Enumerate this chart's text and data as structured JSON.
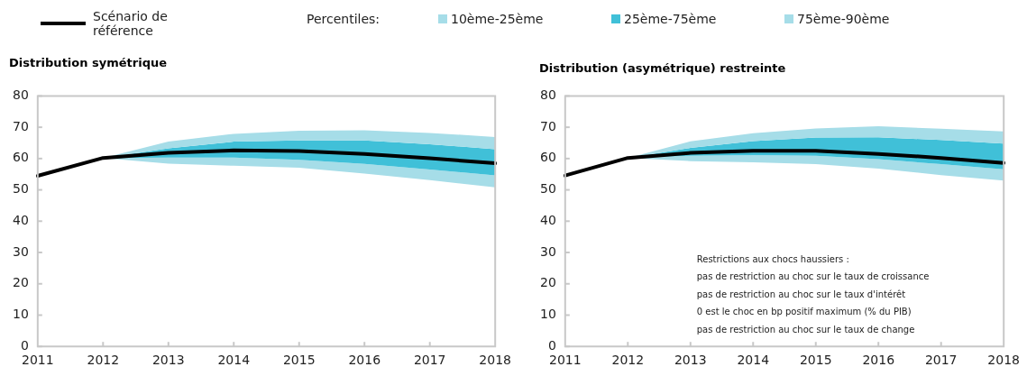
{
  "chart_data": [
    {
      "type": "line",
      "title": "Distribution symétrique",
      "legend_title": "Percentiles:",
      "legend": "top",
      "categories": [
        "2011",
        "2012",
        "2013",
        "2014",
        "2015",
        "2016",
        "2017",
        "2018"
      ],
      "ylim": [
        0,
        80
      ],
      "yticks": [
        0,
        10,
        20,
        30,
        40,
        50,
        60,
        70,
        80
      ],
      "grid": false,
      "marker": "none",
      "line_style": "solid",
      "series": [
        {
          "name": "Scénario de référence",
          "type": "line",
          "color": "#000000",
          "values": [
            54.5,
            60.2,
            61.8,
            62.6,
            62.4,
            61.5,
            60.1,
            58.5
          ]
        },
        {
          "name": "10ème-25ème",
          "type": "area",
          "color": "#a6dde8",
          "values": [
            null,
            null,
            null,
            null,
            null,
            null,
            null,
            null
          ],
          "lower": [
            null,
            60.2,
            58.4,
            57.7,
            57.1,
            55.2,
            53.1,
            50.8
          ],
          "upper": [
            null,
            60.2,
            60.3,
            60.3,
            59.6,
            58.3,
            56.5,
            54.6
          ]
        },
        {
          "name": "25ème-75ème",
          "type": "area",
          "color": "#40c0d8",
          "values": [
            null,
            null,
            null,
            null,
            null,
            null,
            null,
            null
          ],
          "lower": [
            null,
            60.2,
            60.3,
            60.3,
            59.6,
            58.3,
            56.5,
            54.6
          ],
          "upper": [
            null,
            60.2,
            63.3,
            65.4,
            65.8,
            65.8,
            64.6,
            63
          ]
        },
        {
          "name": "75ème-90ème",
          "type": "area",
          "color": "#a6dde8",
          "values": [
            null,
            null,
            null,
            null,
            null,
            null,
            null,
            null
          ],
          "lower": [
            null,
            60.2,
            63.3,
            65.4,
            65.8,
            65.8,
            64.6,
            63
          ],
          "upper": [
            null,
            60.2,
            65.4,
            67.9,
            68.9,
            69,
            68.2,
            66.9
          ]
        }
      ]
    },
    {
      "type": "line",
      "title": "Distribution (asymétrique) restreinte",
      "legend": false,
      "categories": [
        "2011",
        "2012",
        "2013",
        "2014",
        "2015",
        "2016",
        "2017",
        "2018"
      ],
      "ylim": [
        0,
        80
      ],
      "yticks": [
        0,
        10,
        20,
        30,
        40,
        50,
        60,
        70,
        80
      ],
      "grid": false,
      "marker": "none",
      "line_style": "solid",
      "annotations": [
        "Restrictions aux chocs haussiers :",
        "pas de restriction au choc sur le taux de croissance",
        "pas de restriction au choc sur le taux d'intérêt",
        "0 est le choc en bp positif maximum (% du PIB)",
        "pas de restriction au choc sur le taux de change"
      ],
      "series": [
        {
          "type": "line",
          "color": "#000000",
          "values": [
            54.6,
            60.2,
            61.8,
            62.5,
            62.5,
            61.5,
            60.2,
            58.6
          ]
        },
        {
          "type": "area",
          "color": "#a6dde8",
          "values": [
            null,
            null,
            null,
            null,
            null,
            null,
            null,
            null
          ],
          "lower": [
            null,
            60.2,
            59.2,
            58.8,
            58.2,
            56.8,
            54.7,
            53
          ],
          "upper": [
            null,
            60.2,
            60.9,
            61.1,
            60.9,
            59.8,
            58.2,
            56.6
          ]
        },
        {
          "type": "area",
          "color": "#40c0d8",
          "values": [
            null,
            null,
            null,
            null,
            null,
            null,
            null,
            null
          ],
          "lower": [
            null,
            60.2,
            60.9,
            61.1,
            60.9,
            59.8,
            58.2,
            56.6
          ],
          "upper": [
            null,
            60.2,
            63.4,
            65.6,
            66.7,
            66.8,
            65.9,
            64.8
          ]
        },
        {
          "type": "area",
          "color": "#a6dde8",
          "values": [
            null,
            null,
            null,
            null,
            null,
            null,
            null,
            null
          ],
          "lower": [
            null,
            60.2,
            63.4,
            65.6,
            66.7,
            66.8,
            65.9,
            64.8
          ],
          "upper": [
            null,
            60.2,
            65.5,
            68.1,
            69.6,
            70.3,
            69.5,
            68.7
          ]
        }
      ]
    }
  ]
}
